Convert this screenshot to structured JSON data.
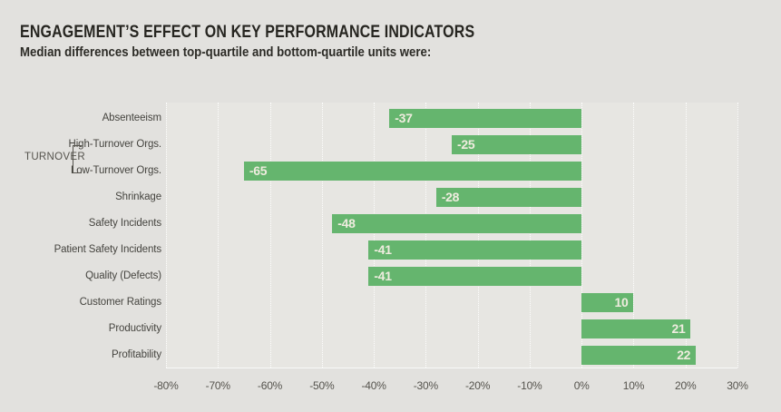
{
  "header": {
    "title": "ENGAGEMENT’S EFFECT ON KEY PERFORMANCE INDICATORS",
    "subtitle": "Median differences between top-quartile and bottom-quartile units were:"
  },
  "chart_data": {
    "type": "bar",
    "orientation": "horizontal",
    "title": "ENGAGEMENT’S EFFECT ON KEY PERFORMANCE INDICATORS",
    "subtitle": "Median differences between top-quartile and bottom-quartile units were:",
    "categories": [
      "Absenteeism",
      "High-Turnover Orgs.",
      "Low-Turnover Orgs.",
      "Shrinkage",
      "Safety Incidents",
      "Patient Safety Incidents",
      "Quality (Defects)",
      "Customer Ratings",
      "Productivity",
      "Profitability"
    ],
    "values": [
      -37,
      -25,
      -65,
      -28,
      -48,
      -41,
      -41,
      10,
      21,
      22
    ],
    "value_labels": [
      "-37",
      "-25",
      "-65",
      "-28",
      "-48",
      "-41",
      "-41",
      "10",
      "21",
      "22"
    ],
    "group": {
      "label": "TURNOVER",
      "rows": [
        1,
        2
      ]
    },
    "xlim": [
      -80,
      30
    ],
    "x_tick_values": [
      -80,
      -70,
      -60,
      -50,
      -40,
      -30,
      -20,
      -10,
      0,
      10,
      20,
      30
    ],
    "x_tick_labels": [
      "-80%",
      "-70%",
      "-60%",
      "-50%",
      "-40%",
      "-30%",
      "-20%",
      "-10%",
      "0%",
      "10%",
      "20%",
      "30%"
    ],
    "grid": true,
    "legend": null,
    "colors": {
      "bar": "#65b56e",
      "value_label": "#efecdf",
      "page_background": "#e2e1de",
      "plot_background": "#e7e6e2",
      "text_dark": "#262520",
      "text_gray": "#55534d"
    }
  }
}
